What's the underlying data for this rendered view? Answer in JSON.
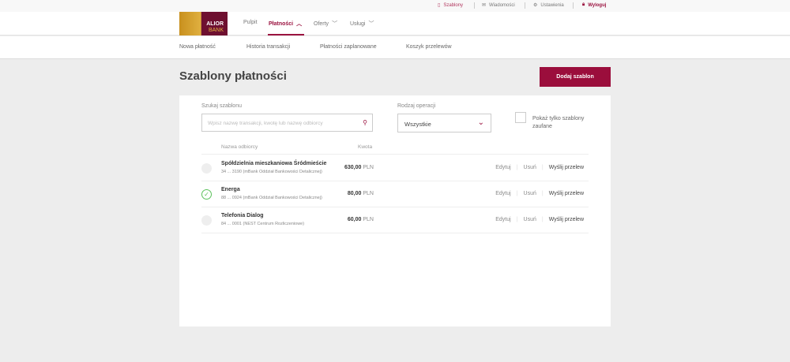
{
  "topbar": {
    "templates": "Szablony",
    "messages": "Wiadomości",
    "settings": "Ustawienia",
    "logout": "Wyloguj"
  },
  "logo": {
    "line1": "ALIOR",
    "line2": "BANK"
  },
  "nav": [
    {
      "label": "Pulpit"
    },
    {
      "label": "Płatności"
    },
    {
      "label": "Oferty"
    },
    {
      "label": "Usługi"
    }
  ],
  "subnav": [
    "Nowa płatność",
    "Historia transakcji",
    "Płatności zaplanowane",
    "Koszyk przelewów"
  ],
  "page": {
    "title": "Szablony płatności",
    "add_button": "Dodaj szablon"
  },
  "filters": {
    "search_label": "Szukaj szablonu",
    "search_placeholder": "Wpisz nazwę transakcji, kwotę lub nazwę odbiorcy",
    "op_label": "Rodzaj operacji",
    "op_value": "Wszystkie",
    "trusted_label": "Pokaż tylko szablony",
    "trusted_label2": "zaufane"
  },
  "table": {
    "col_name": "Nazwa odbiorcy",
    "col_amount": "Kwota",
    "rows": [
      {
        "name": "Spółdzielnia mieszkaniowa Śródmieście",
        "account": "34 ... 3190 (mBank Oddział Bankowości Detalicznej)",
        "amount": "630,00",
        "currency": "PLN",
        "trusted": false
      },
      {
        "name": "Energa",
        "account": "88 ... 0924 (mBank Oddział Bankowości Detalicznej)",
        "amount": "80,00",
        "currency": "PLN",
        "trusted": true
      },
      {
        "name": "Telefonia Dialog",
        "account": "84 ... 0001 (NEST Centrum Rozliczeniowe)",
        "amount": "60,00",
        "currency": "PLN",
        "trusted": false
      }
    ],
    "actions": {
      "edit": "Edytuj",
      "delete": "Usuń",
      "send": "Wyślij przelew"
    }
  },
  "colors": {
    "accent": "#9b0e3c",
    "trusted": "#5cc15c"
  }
}
